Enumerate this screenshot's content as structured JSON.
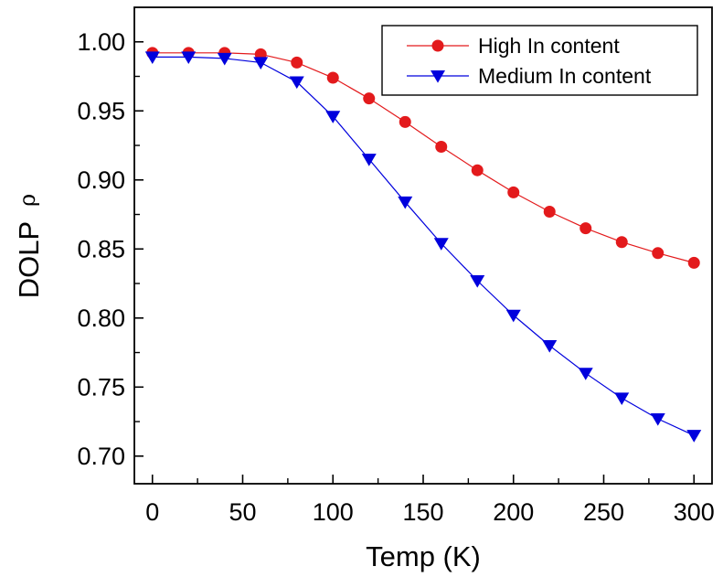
{
  "chart_data": {
    "type": "line",
    "title": "",
    "xlabel": "Temp (K)",
    "ylabel": "DOLP",
    "ylabel_symbol": "ρ",
    "xlim": [
      -10,
      310
    ],
    "ylim": [
      0.68,
      1.025
    ],
    "xticks": [
      0,
      50,
      100,
      150,
      200,
      250,
      300
    ],
    "xtick_labels": [
      "0",
      "50",
      "100",
      "150",
      "200",
      "250",
      "300"
    ],
    "yticks": [
      0.7,
      0.75,
      0.8,
      0.85,
      0.9,
      0.95,
      1.0
    ],
    "ytick_labels": [
      "0.70",
      "0.75",
      "0.80",
      "0.85",
      "0.90",
      "0.95",
      "1.00"
    ],
    "grid": false,
    "legend_position": "top-right",
    "x": [
      0,
      20,
      40,
      60,
      80,
      100,
      120,
      140,
      160,
      180,
      200,
      220,
      240,
      260,
      280,
      300
    ],
    "series": [
      {
        "name": "High In content",
        "color": "#e31a1c",
        "marker": "circle",
        "values": [
          0.992,
          0.992,
          0.992,
          0.991,
          0.985,
          0.974,
          0.959,
          0.942,
          0.924,
          0.907,
          0.891,
          0.877,
          0.865,
          0.855,
          0.847,
          0.84
        ]
      },
      {
        "name": "Medium In content",
        "color": "#0000dd",
        "marker": "triangle-down",
        "values": [
          0.989,
          0.989,
          0.988,
          0.985,
          0.971,
          0.946,
          0.915,
          0.884,
          0.854,
          0.827,
          0.802,
          0.78,
          0.76,
          0.742,
          0.727,
          0.715
        ]
      }
    ]
  }
}
